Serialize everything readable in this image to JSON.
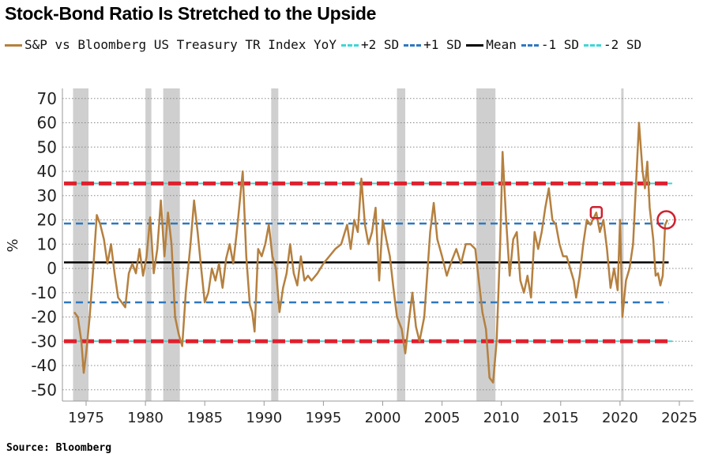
{
  "title": "Stock-Bond Ratio Is Stretched to the Upside",
  "source": "Source: Bloomberg",
  "chart_data": {
    "type": "line",
    "title": "Stock-Bond Ratio Is Stretched to the Upside",
    "ylabel": "%",
    "xlabel": "",
    "ylim": [
      -55,
      75
    ],
    "xlim": [
      1973,
      2026.2
    ],
    "yticks": [
      70,
      60,
      50,
      40,
      30,
      20,
      10,
      0,
      -10,
      -20,
      -30,
      -40,
      -50
    ],
    "xticks": [
      1975,
      1980,
      1985,
      1990,
      1995,
      2000,
      2005,
      2010,
      2015,
      2020,
      2025
    ],
    "grid": "horizontal dotted",
    "legend_placement": "top",
    "legend": [
      {
        "label": "S&P vs Bloomberg US Treasury TR Index YoY",
        "color": "#b5803f",
        "style": "solid"
      },
      {
        "label": "+2 SD",
        "color": "#3fd6d6",
        "style": "dashed"
      },
      {
        "label": "+1 SD",
        "color": "#2f78c0",
        "style": "dashed"
      },
      {
        "label": "Mean",
        "color": "#000000",
        "style": "solid"
      },
      {
        "label": "-1 SD",
        "color": "#2f78c0",
        "style": "dashed"
      },
      {
        "label": "-2 SD",
        "color": "#3fd6d6",
        "style": "dashed"
      }
    ],
    "reference_lines": [
      {
        "name": "+2 SD",
        "value": 35,
        "color": "#e0202e",
        "style": "dashed-bold"
      },
      {
        "name": "+1 SD",
        "value": 18.5,
        "color": "#2f78c0",
        "style": "dashed"
      },
      {
        "name": "Mean",
        "value": 2.5,
        "color": "#000000",
        "style": "solid"
      },
      {
        "name": "-1 SD",
        "value": -14,
        "color": "#2f78c0",
        "style": "dashed"
      },
      {
        "name": "-2 SD",
        "value": -30,
        "color": "#e0202e",
        "style": "dashed-bold"
      }
    ],
    "recessions": [
      [
        1973.9,
        1975.2
      ],
      [
        1980.0,
        1980.5
      ],
      [
        1981.5,
        1982.9
      ],
      [
        1990.6,
        1991.2
      ],
      [
        2001.2,
        2001.9
      ],
      [
        2007.9,
        2009.5
      ],
      [
        2020.1,
        2020.3
      ]
    ],
    "annotations": [
      {
        "shape": "square",
        "x": 2018.0,
        "y": 23,
        "color": "#d0202e"
      },
      {
        "shape": "circle",
        "x": 2023.9,
        "y": 20,
        "color": "#d0202e"
      }
    ],
    "series": [
      {
        "name": "S&P vs Bloomberg US Treasury TR Index YoY",
        "color": "#b5803f",
        "points": [
          [
            1974.0,
            -18
          ],
          [
            1974.3,
            -20
          ],
          [
            1974.6,
            -30
          ],
          [
            1974.8,
            -43
          ],
          [
            1975.0,
            -35
          ],
          [
            1975.3,
            -20
          ],
          [
            1975.6,
            0
          ],
          [
            1975.9,
            22
          ],
          [
            1976.2,
            18
          ],
          [
            1976.5,
            12
          ],
          [
            1976.8,
            2
          ],
          [
            1977.1,
            10
          ],
          [
            1977.4,
            -2
          ],
          [
            1977.7,
            -12
          ],
          [
            1978.0,
            -14
          ],
          [
            1978.3,
            -16
          ],
          [
            1978.6,
            -2
          ],
          [
            1978.9,
            2
          ],
          [
            1979.2,
            -2
          ],
          [
            1979.5,
            8
          ],
          [
            1979.8,
            -3
          ],
          [
            1980.1,
            5
          ],
          [
            1980.4,
            21
          ],
          [
            1980.7,
            -2
          ],
          [
            1981.0,
            8
          ],
          [
            1981.3,
            28
          ],
          [
            1981.6,
            5
          ],
          [
            1981.9,
            23
          ],
          [
            1982.2,
            10
          ],
          [
            1982.5,
            -20
          ],
          [
            1982.8,
            -27
          ],
          [
            1983.1,
            -32
          ],
          [
            1983.4,
            -10
          ],
          [
            1983.8,
            10
          ],
          [
            1984.1,
            28
          ],
          [
            1984.4,
            15
          ],
          [
            1984.7,
            0
          ],
          [
            1985.0,
            -14
          ],
          [
            1985.3,
            -10
          ],
          [
            1985.6,
            0
          ],
          [
            1985.9,
            -5
          ],
          [
            1986.2,
            2
          ],
          [
            1986.5,
            -8
          ],
          [
            1986.8,
            4
          ],
          [
            1987.1,
            10
          ],
          [
            1987.4,
            2
          ],
          [
            1987.7,
            15
          ],
          [
            1988.0,
            30
          ],
          [
            1988.2,
            40
          ],
          [
            1988.5,
            5
          ],
          [
            1988.8,
            -15
          ],
          [
            1989.0,
            -18
          ],
          [
            1989.2,
            -26
          ],
          [
            1989.5,
            8
          ],
          [
            1989.8,
            5
          ],
          [
            1990.1,
            10
          ],
          [
            1990.4,
            18
          ],
          [
            1990.7,
            5
          ],
          [
            1991.0,
            0
          ],
          [
            1991.3,
            -18
          ],
          [
            1991.6,
            -8
          ],
          [
            1991.9,
            -2
          ],
          [
            1992.2,
            10
          ],
          [
            1992.5,
            -2
          ],
          [
            1992.8,
            -7
          ],
          [
            1993.1,
            5
          ],
          [
            1993.4,
            -5
          ],
          [
            1993.7,
            -3
          ],
          [
            1994.0,
            -5
          ],
          [
            1994.5,
            -2
          ],
          [
            1995.0,
            2
          ],
          [
            1995.5,
            5
          ],
          [
            1996.0,
            8
          ],
          [
            1996.5,
            10
          ],
          [
            1997.0,
            18
          ],
          [
            1997.3,
            8
          ],
          [
            1997.6,
            20
          ],
          [
            1997.9,
            15
          ],
          [
            1998.2,
            37
          ],
          [
            1998.5,
            18
          ],
          [
            1998.8,
            10
          ],
          [
            1999.1,
            15
          ],
          [
            1999.4,
            25
          ],
          [
            1999.7,
            -5
          ],
          [
            2000.0,
            20
          ],
          [
            2000.3,
            12
          ],
          [
            2000.6,
            5
          ],
          [
            2000.9,
            -8
          ],
          [
            2001.2,
            -20
          ],
          [
            2001.6,
            -25
          ],
          [
            2001.9,
            -35
          ],
          [
            2002.2,
            -22
          ],
          [
            2002.5,
            -10
          ],
          [
            2002.8,
            -24
          ],
          [
            2003.1,
            -30
          ],
          [
            2003.5,
            -20
          ],
          [
            2004.0,
            15
          ],
          [
            2004.3,
            27
          ],
          [
            2004.6,
            12
          ],
          [
            2005.0,
            5
          ],
          [
            2005.4,
            -3
          ],
          [
            2005.8,
            3
          ],
          [
            2006.2,
            8
          ],
          [
            2006.6,
            2
          ],
          [
            2007.0,
            10
          ],
          [
            2007.4,
            10
          ],
          [
            2007.8,
            8
          ],
          [
            2008.1,
            -5
          ],
          [
            2008.4,
            -18
          ],
          [
            2008.7,
            -25
          ],
          [
            2009.0,
            -45
          ],
          [
            2009.3,
            -47
          ],
          [
            2009.6,
            -30
          ],
          [
            2009.9,
            10
          ],
          [
            2010.1,
            48
          ],
          [
            2010.4,
            20
          ],
          [
            2010.7,
            -3
          ],
          [
            2011.0,
            12
          ],
          [
            2011.3,
            15
          ],
          [
            2011.6,
            -5
          ],
          [
            2011.9,
            -10
          ],
          [
            2012.2,
            -3
          ],
          [
            2012.5,
            -12
          ],
          [
            2012.8,
            15
          ],
          [
            2013.1,
            8
          ],
          [
            2013.4,
            15
          ],
          [
            2013.7,
            25
          ],
          [
            2014.0,
            33
          ],
          [
            2014.3,
            20
          ],
          [
            2014.6,
            18
          ],
          [
            2014.9,
            10
          ],
          [
            2015.2,
            5
          ],
          [
            2015.5,
            5
          ],
          [
            2015.8,
            0
          ],
          [
            2016.1,
            -5
          ],
          [
            2016.3,
            -12
          ],
          [
            2016.6,
            -3
          ],
          [
            2016.9,
            10
          ],
          [
            2017.2,
            20
          ],
          [
            2017.5,
            18
          ],
          [
            2017.8,
            21
          ],
          [
            2018.0,
            23
          ],
          [
            2018.3,
            15
          ],
          [
            2018.6,
            20
          ],
          [
            2018.9,
            8
          ],
          [
            2019.2,
            -8
          ],
          [
            2019.5,
            0
          ],
          [
            2019.8,
            -9
          ],
          [
            2020.0,
            20
          ],
          [
            2020.2,
            -20
          ],
          [
            2020.5,
            -5
          ],
          [
            2020.8,
            0
          ],
          [
            2021.1,
            10
          ],
          [
            2021.4,
            40
          ],
          [
            2021.6,
            60
          ],
          [
            2021.9,
            40
          ],
          [
            2022.1,
            33
          ],
          [
            2022.3,
            44
          ],
          [
            2022.5,
            25
          ],
          [
            2022.8,
            12
          ],
          [
            2023.0,
            -3
          ],
          [
            2023.2,
            -2
          ],
          [
            2023.4,
            -7
          ],
          [
            2023.6,
            -3
          ],
          [
            2023.8,
            18
          ],
          [
            2024.0,
            20
          ]
        ]
      }
    ]
  }
}
